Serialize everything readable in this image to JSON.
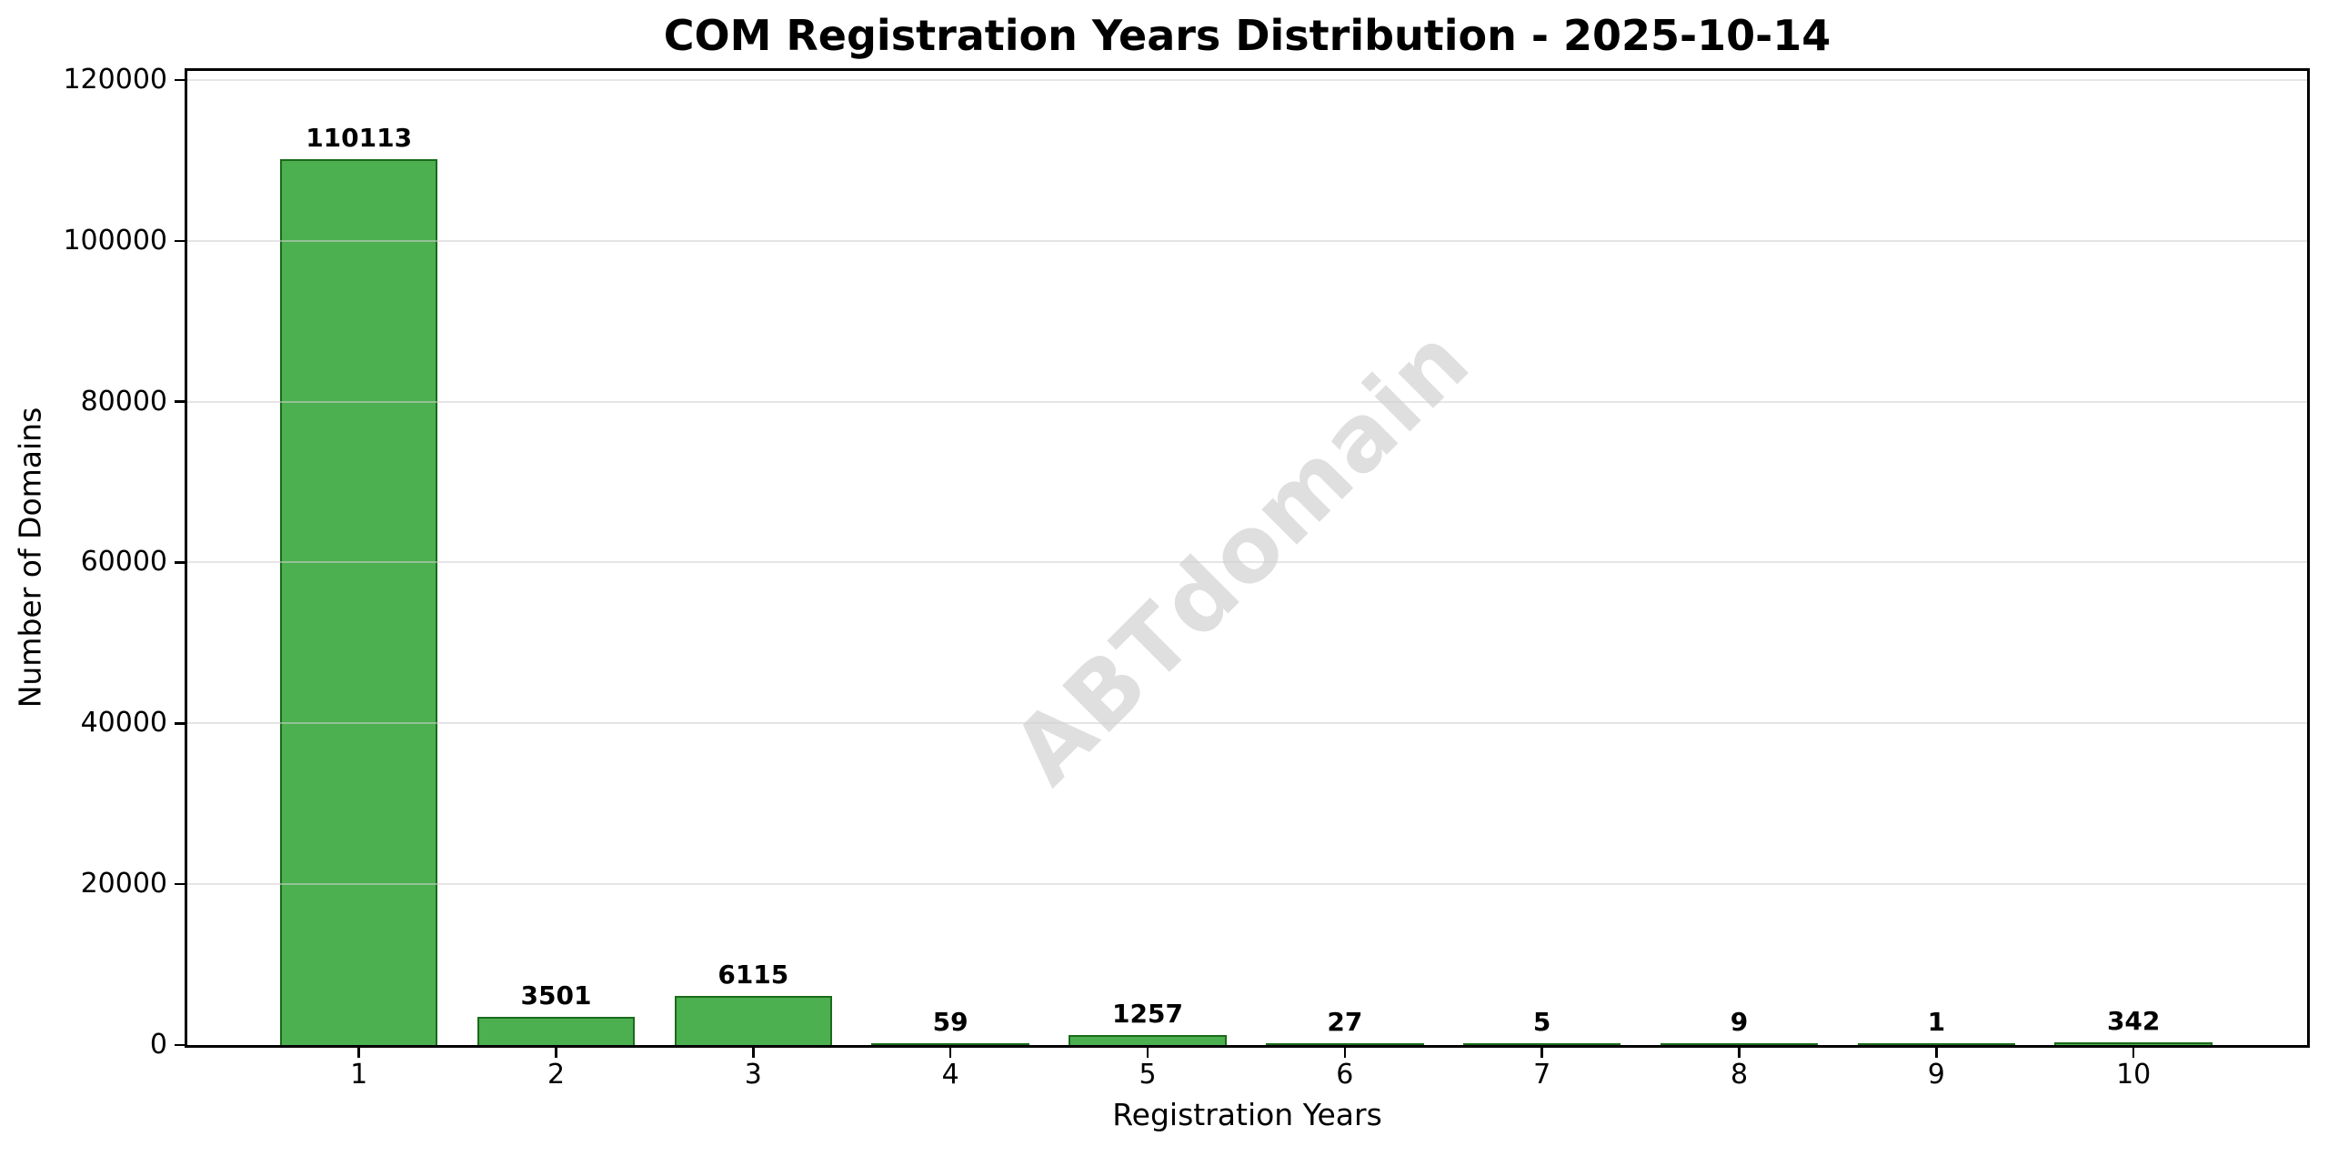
{
  "chart_data": {
    "type": "bar",
    "title": "COM Registration Years Distribution - 2025-10-14",
    "categories": [
      "1",
      "2",
      "3",
      "4",
      "5",
      "6",
      "7",
      "8",
      "9",
      "10"
    ],
    "values": [
      110113,
      3501,
      6115,
      59,
      1257,
      27,
      5,
      9,
      1,
      342
    ],
    "xlabel": "Registration Years",
    "ylabel": "Number of Domains",
    "ylim": [
      0,
      121124
    ],
    "yticks": [
      0,
      20000,
      40000,
      60000,
      80000,
      100000,
      120000
    ],
    "xlim": [
      0.13,
      10.88
    ],
    "bar_width": 0.8,
    "grid": "horizontal",
    "legend": false,
    "watermark": "ABTdomain",
    "colors": {
      "bar_fill": "#4CAF50",
      "bar_edge": "#1a6b1a",
      "grid_line": "#d0d0d0",
      "watermark": "#dfdfdf",
      "axis": "#000000",
      "text": "#000000",
      "background": "#ffffff"
    }
  }
}
